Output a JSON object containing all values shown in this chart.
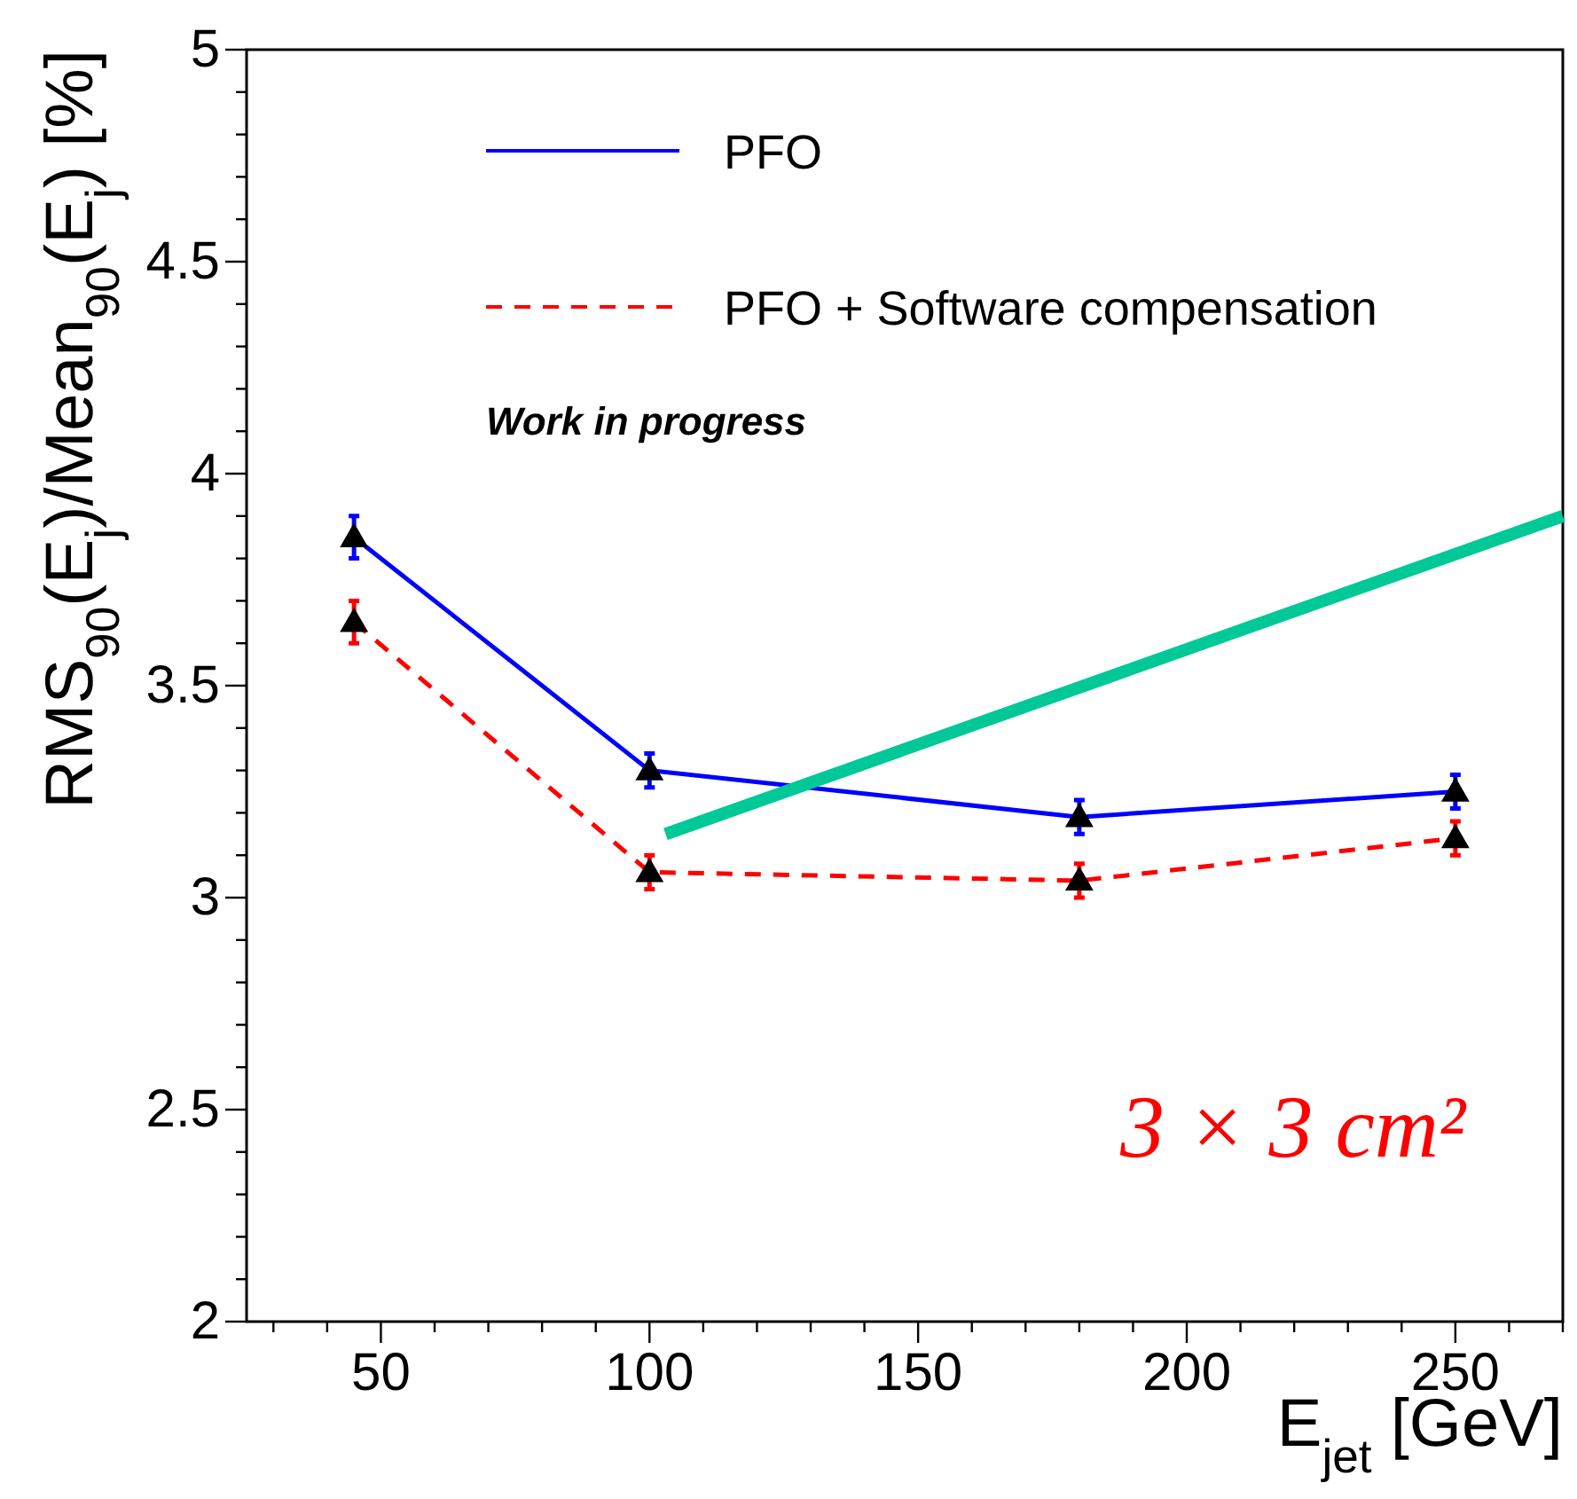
{
  "chart_data": {
    "type": "line",
    "xlabel": "E$_{jet}$ [GeV]",
    "ylabel": "RMS$_{90}$(E$_{j}$)/Mean$_{90}$(E$_{j}$) [%]",
    "x": [
      45,
      100,
      180,
      250
    ],
    "series": [
      {
        "name": "PFO",
        "color": "#0000ff",
        "line_style": "solid",
        "marker": "triangle",
        "values": [
          3.85,
          3.3,
          3.19,
          3.25
        ],
        "errors": [
          0.05,
          0.04,
          0.04,
          0.04
        ]
      },
      {
        "name": "PFO + Software compensation",
        "color": "#ff0000",
        "line_style": "dashed",
        "marker": "triangle",
        "values": [
          3.65,
          3.06,
          3.04,
          3.14
        ],
        "errors": [
          0.05,
          0.04,
          0.04,
          0.04
        ]
      },
      {
        "color": "#00c896",
        "line_style": "solid",
        "marker": "none",
        "x": [
          103,
          270
        ],
        "values": [
          3.15,
          3.9
        ]
      }
    ],
    "xlim": [
      25,
      270
    ],
    "xticks": [
      {
        "value": 30,
        "label": null
      },
      {
        "value": 40,
        "label": null
      },
      50,
      {
        "value": 60,
        "label": null
      },
      {
        "value": 70,
        "label": null
      },
      {
        "value": 80,
        "label": null
      },
      {
        "value": 90,
        "label": null
      },
      100,
      {
        "value": 110,
        "label": null
      },
      {
        "value": 120,
        "label": null
      },
      {
        "value": 130,
        "label": null
      },
      {
        "value": 140,
        "label": null
      },
      150,
      {
        "value": 160,
        "label": null
      },
      {
        "value": 170,
        "label": null
      },
      {
        "value": 180,
        "label": null
      },
      {
        "value": 190,
        "label": null
      },
      200,
      {
        "value": 210,
        "label": null
      },
      {
        "value": 220,
        "label": null
      },
      {
        "value": 230,
        "label": null
      },
      {
        "value": 240,
        "label": null
      },
      250,
      {
        "value": 260,
        "label": null
      },
      {
        "value": 270,
        "label": null
      }
    ],
    "ylim": [
      2,
      5
    ],
    "yticks": [
      2,
      {
        "value": 2.1,
        "label": null
      },
      {
        "value": 2.2,
        "label": null
      },
      {
        "value": 2.3,
        "label": null
      },
      {
        "value": 2.4,
        "label": null
      },
      2.5,
      {
        "value": 2.6,
        "label": null
      },
      {
        "value": 2.7,
        "label": null
      },
      {
        "value": 2.8,
        "label": null
      },
      {
        "value": 2.9,
        "label": null
      },
      3,
      {
        "value": 3.1,
        "label": null
      },
      {
        "value": 3.2,
        "label": null
      },
      {
        "value": 3.3,
        "label": null
      },
      {
        "value": 3.4,
        "label": null
      },
      3.5,
      {
        "value": 3.6,
        "label": null
      },
      {
        "value": 3.7,
        "label": null
      },
      {
        "value": 3.8,
        "label": null
      },
      {
        "value": 3.9,
        "label": null
      },
      4,
      {
        "value": 4.1,
        "label": null
      },
      {
        "value": 4.2,
        "label": null
      },
      {
        "value": 4.3,
        "label": null
      },
      {
        "value": 4.4,
        "label": null
      },
      4.5,
      {
        "value": 4.6,
        "label": null
      },
      {
        "value": 4.7,
        "label": null
      },
      {
        "value": 4.8,
        "label": null
      },
      {
        "value": 4.9,
        "label": null
      },
      5
    ],
    "grid": false,
    "legend": "top",
    "annotations": [
      "Work in progress",
      "3 × 3 cm²"
    ]
  }
}
